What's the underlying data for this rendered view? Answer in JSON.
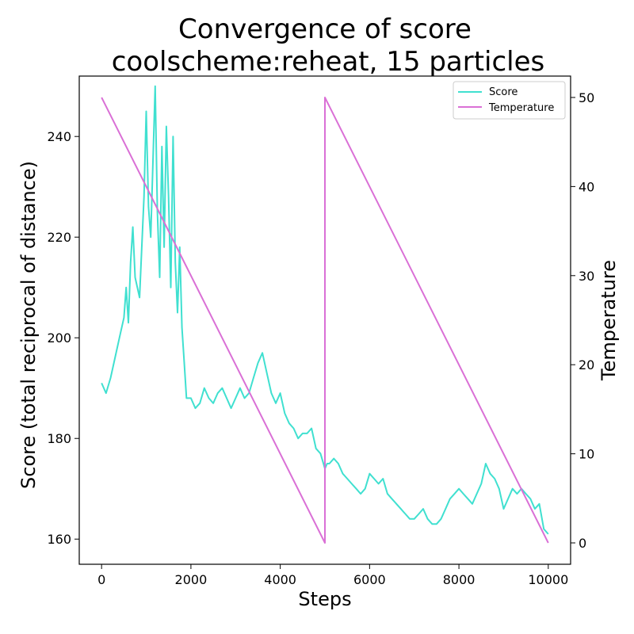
{
  "chart_data": {
    "type": "line",
    "title_line1": "Convergence of score",
    "title_line2": "coolscheme:reheat, 15 particles",
    "xlabel": "Steps",
    "ylabel_left": "Score (total reciprocal of distance)",
    "ylabel_right": "Temperature",
    "xlim": [
      -500,
      10500
    ],
    "ylim_left": [
      155,
      252
    ],
    "ylim_right": [
      -2.4,
      52.4
    ],
    "x_ticks": [
      0,
      2000,
      4000,
      6000,
      8000,
      10000
    ],
    "y_left_ticks": [
      160,
      180,
      200,
      220,
      240
    ],
    "y_right_ticks": [
      0,
      10,
      20,
      30,
      40,
      50
    ],
    "grid": false,
    "legend_position": "top-right",
    "series": [
      {
        "name": "Score",
        "axis": "left",
        "color": "#40E0D0",
        "x": [
          0,
          100,
          200,
          300,
          400,
          500,
          550,
          600,
          650,
          700,
          750,
          800,
          850,
          900,
          950,
          1000,
          1050,
          1100,
          1150,
          1200,
          1250,
          1300,
          1350,
          1400,
          1450,
          1500,
          1550,
          1600,
          1650,
          1700,
          1750,
          1800,
          1850,
          1900,
          2000,
          2100,
          2200,
          2300,
          2400,
          2500,
          2600,
          2700,
          2800,
          2900,
          3000,
          3100,
          3200,
          3300,
          3400,
          3500,
          3600,
          3700,
          3800,
          3900,
          4000,
          4100,
          4200,
          4300,
          4400,
          4500,
          4600,
          4700,
          4800,
          4900,
          5000,
          5050,
          5100,
          5200,
          5300,
          5400,
          5500,
          5600,
          5700,
          5800,
          5900,
          6000,
          6100,
          6200,
          6300,
          6400,
          6500,
          6600,
          6700,
          6800,
          6900,
          7000,
          7100,
          7200,
          7300,
          7400,
          7500,
          7600,
          7700,
          7800,
          7900,
          8000,
          8100,
          8200,
          8300,
          8400,
          8500,
          8600,
          8700,
          8800,
          8900,
          9000,
          9100,
          9200,
          9300,
          9400,
          9500,
          9600,
          9700,
          9800,
          9900,
          10000
        ],
        "y": [
          191,
          189,
          192,
          196,
          200,
          204,
          210,
          203,
          215,
          222,
          212,
          210,
          208,
          218,
          228,
          245,
          226,
          220,
          235,
          250,
          225,
          212,
          238,
          218,
          242,
          228,
          210,
          240,
          215,
          205,
          218,
          202,
          195,
          188,
          188,
          186,
          187,
          190,
          188,
          187,
          189,
          190,
          188,
          186,
          188,
          190,
          188,
          189,
          192,
          195,
          197,
          193,
          189,
          187,
          189,
          185,
          183,
          182,
          180,
          181,
          181,
          182,
          178,
          177,
          174,
          175,
          175,
          176,
          175,
          173,
          172,
          171,
          170,
          169,
          170,
          173,
          172,
          171,
          172,
          169,
          168,
          167,
          166,
          165,
          164,
          164,
          165,
          166,
          164,
          163,
          163,
          164,
          166,
          168,
          169,
          170,
          169,
          168,
          167,
          169,
          171,
          175,
          173,
          172,
          170,
          166,
          168,
          170,
          169,
          170,
          169,
          168,
          166,
          167,
          162,
          161
        ]
      },
      {
        "name": "Temperature",
        "axis": "right",
        "color": "#DA70D6",
        "x": [
          0,
          5000,
          5000,
          10000
        ],
        "y": [
          50,
          0,
          50,
          0
        ]
      }
    ]
  }
}
